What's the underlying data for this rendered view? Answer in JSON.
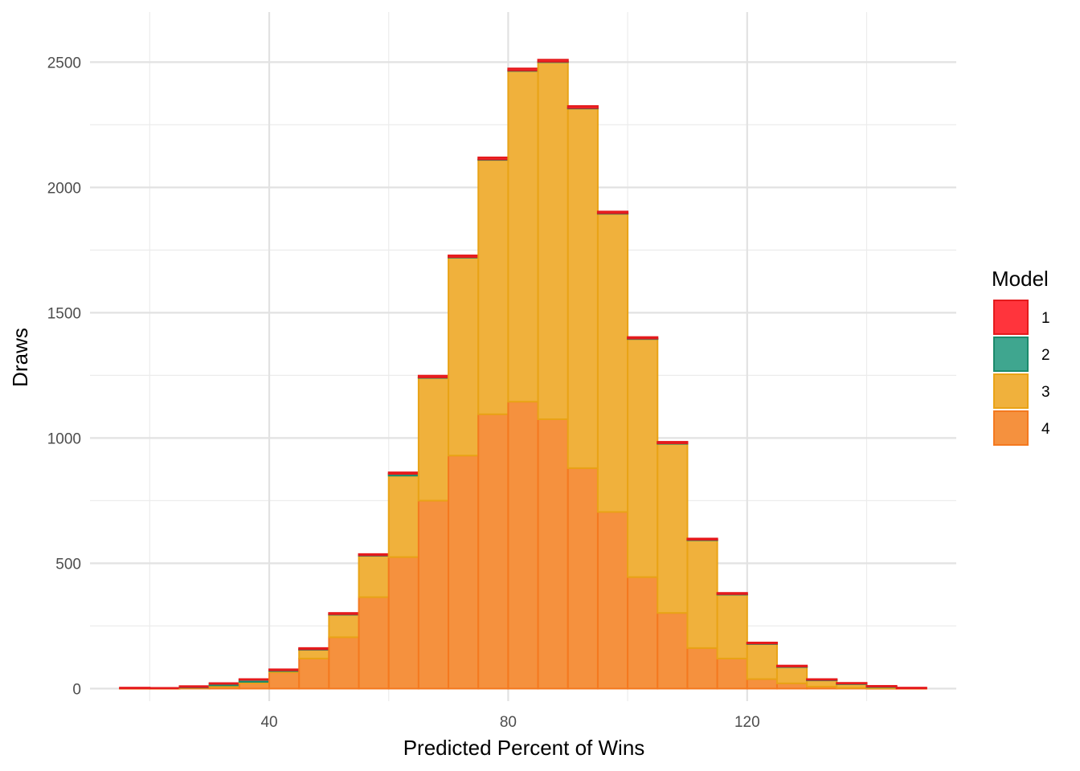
{
  "chart_data": {
    "type": "bar",
    "subtype": "stacked-histogram",
    "xlabel": "Predicted Percent of Wins",
    "ylabel": "Draws",
    "xlim": [
      10,
      155
    ],
    "ylim": [
      -50,
      2700
    ],
    "x_ticks": [
      40,
      80,
      120
    ],
    "x_tick_labels": [
      "40",
      "80",
      "120"
    ],
    "y_ticks": [
      0,
      500,
      1000,
      1500,
      2000,
      2500
    ],
    "y_tick_labels": [
      "0",
      "500",
      "1000",
      "1500",
      "2000",
      "2500"
    ],
    "grid": true,
    "bin_width": 5,
    "bin_starts": [
      15,
      20,
      25,
      30,
      35,
      40,
      45,
      50,
      55,
      60,
      65,
      70,
      75,
      80,
      85,
      90,
      95,
      100,
      105,
      110,
      115,
      120,
      125,
      130,
      135,
      140,
      145
    ],
    "legend": {
      "title": "Model",
      "position": "right"
    },
    "series": [
      {
        "name": "1",
        "color": "#E41A1C",
        "fill": "#FF343C",
        "values": [
          3,
          2,
          4,
          3,
          3,
          4,
          5,
          5,
          5,
          6,
          7,
          7,
          8,
          8,
          8,
          8,
          7,
          6,
          6,
          5,
          5,
          4,
          4,
          3,
          3,
          3,
          3
        ]
      },
      {
        "name": "2",
        "color": "#1B8A6B",
        "fill": "#3FA68F",
        "values": [
          0,
          0,
          1,
          6,
          8,
          3,
          2,
          2,
          2,
          7,
          2,
          2,
          2,
          2,
          2,
          2,
          2,
          2,
          2,
          2,
          2,
          2,
          2,
          2,
          2,
          2,
          0
        ]
      },
      {
        "name": "3",
        "color": "#E9A316",
        "fill": "#F0B13C",
        "values": [
          0,
          0,
          2,
          5,
          5,
          5,
          35,
          90,
          165,
          325,
          490,
          790,
          1015,
          1320,
          1425,
          1435,
          1190,
          950,
          675,
          430,
          255,
          140,
          65,
          25,
          15,
          5,
          0
        ]
      },
      {
        "name": "4",
        "color": "#F4791F",
        "fill": "#F5913E",
        "values": [
          1,
          1,
          3,
          8,
          22,
          65,
          120,
          205,
          365,
          525,
          750,
          930,
          1095,
          1145,
          1075,
          880,
          705,
          445,
          302,
          162,
          120,
          38,
          21,
          8,
          3,
          1,
          1
        ]
      }
    ]
  }
}
